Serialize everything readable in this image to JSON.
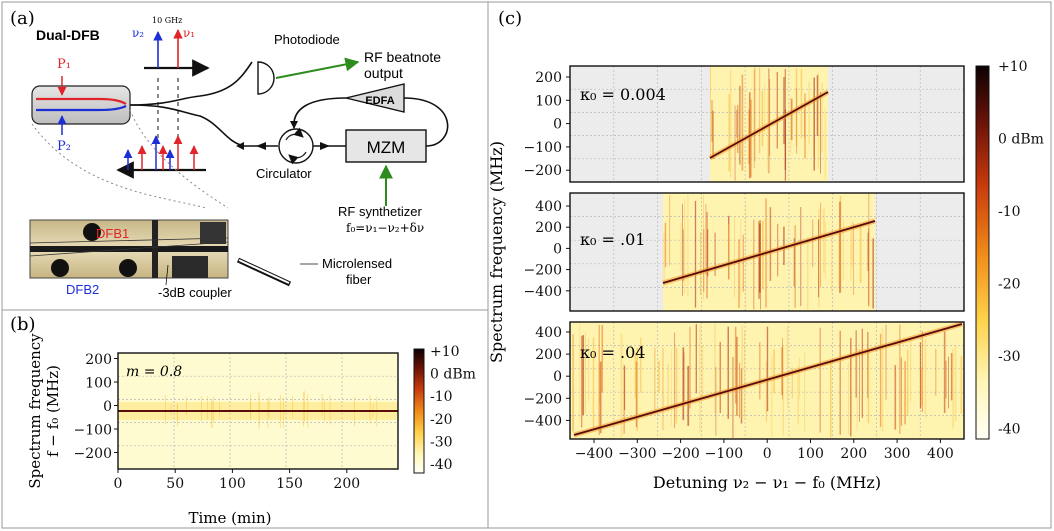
{
  "panel_a": {
    "label": "(a)",
    "title": "Dual-DFB",
    "freq_label": "10 GHz",
    "nu2": "ν₂",
    "nu1": "ν₁",
    "p1": "P₁",
    "p2": "P₂",
    "photodiode": "Photodiode",
    "rf_out_line1": "RF beatnote",
    "rf_out_line2": "output",
    "edfa": "EDFA",
    "mzm": "MZM",
    "circulator": "Circulator",
    "synth_line1": "RF synthetizer",
    "synth_line2": "f₀=ν₁−ν₂+δν",
    "dfb1": "DFB1",
    "dfb2": "DFB2",
    "coupler": "-3dB coupler",
    "fiber_line1": "Microlensed",
    "fiber_line2": "fiber"
  },
  "panel_b": {
    "label": "(b)",
    "m_label": "m = 0.8",
    "ylabel1": "Spectrum frequency",
    "ylabel2": "f − f₀ (MHz)",
    "xlabel": "Time (min)",
    "yticks": [
      "200",
      "100",
      "0",
      "−100",
      "−200"
    ],
    "xticks": [
      "0",
      "50",
      "100",
      "150",
      "200"
    ],
    "cbar_ticks": [
      "+10",
      "0 dBm",
      "-10",
      "-20",
      "-30",
      "-40"
    ]
  },
  "panel_c": {
    "label": "(c)",
    "kappa_labels": [
      "κ₀ = 0.004",
      "κ₀ = .01",
      "κ₀ = .04"
    ],
    "ylabel": "Spectrum frequency (MHz)",
    "xlabel": "Detuning ν₂ − ν₁ − f₀ (MHz)",
    "yticks_top": [
      "200",
      "100",
      "0",
      "−100",
      "−200"
    ],
    "yticks_mid": [
      "400",
      "200",
      "0",
      "−200",
      "−400"
    ],
    "yticks_bot": [
      "400",
      "200",
      "0",
      "−200",
      "−400"
    ],
    "xticks": [
      "−400",
      "−300",
      "−200",
      "−100",
      "0",
      "100",
      "200",
      "300",
      "400"
    ],
    "cbar_ticks": [
      "+10",
      "0 dBm",
      "-10",
      "-20",
      "-30",
      "-40"
    ]
  },
  "colors": {
    "red": "#e0242a",
    "blue": "#1c2fd6",
    "green": "#2e8b1e",
    "beat_line": "#5a0b0b",
    "no_data": "#ececec"
  }
}
